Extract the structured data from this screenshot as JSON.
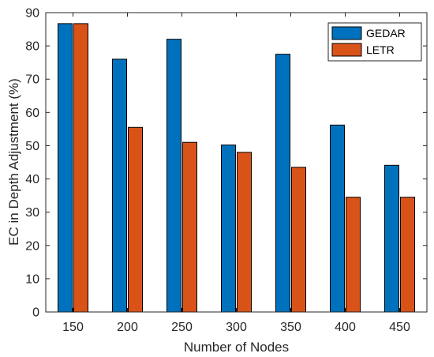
{
  "chart_data": {
    "type": "bar",
    "categories": [
      "150",
      "200",
      "250",
      "300",
      "350",
      "400",
      "450"
    ],
    "series": [
      {
        "name": "GEDAR",
        "values": [
          86.7,
          76.0,
          82.0,
          50.2,
          77.5,
          56.2,
          44.1
        ],
        "color": "#0072BD"
      },
      {
        "name": "LETR",
        "values": [
          86.7,
          55.5,
          51.0,
          48.0,
          43.5,
          34.5,
          34.5
        ],
        "color": "#D95319"
      }
    ],
    "xlabel": "Number of Nodes",
    "ylabel": "EC in Depth Adjustment (%)",
    "ylim": [
      0,
      90
    ],
    "yticks": [
      0,
      10,
      20,
      30,
      40,
      50,
      60,
      70,
      80,
      90
    ],
    "grid": false,
    "legend_position": "top-right"
  }
}
